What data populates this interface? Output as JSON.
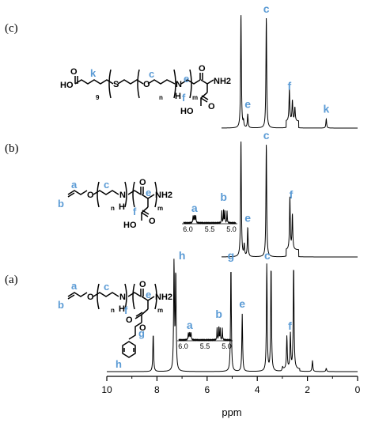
{
  "chart_data": {
    "type": "line",
    "xlabel": "ppm",
    "xlim": [
      10,
      0
    ],
    "x_reversed": true,
    "x_ticks": [
      "10",
      "8",
      "6",
      "4",
      "2",
      "0"
    ],
    "panels": [
      {
        "tag": "(c)",
        "peaks": [
          {
            "ppm": 4.65,
            "height": 1.0
          },
          {
            "ppm": 4.55,
            "height": 0.05
          },
          {
            "ppm": 4.38,
            "height": 0.12
          },
          {
            "ppm": 3.64,
            "height": 0.97
          },
          {
            "ppm": 2.72,
            "height": 0.28
          },
          {
            "ppm": 2.6,
            "height": 0.18
          },
          {
            "ppm": 2.5,
            "height": 0.12
          },
          {
            "ppm": 1.25,
            "height": 0.08
          }
        ],
        "labels": [
          {
            "text": "c",
            "ppm": 3.64,
            "pos": "top"
          },
          {
            "text": "e",
            "ppm": 4.38,
            "pos": "mid"
          },
          {
            "text": "f",
            "ppm": 2.72,
            "pos": "mid"
          },
          {
            "text": "k",
            "ppm": 1.25,
            "pos": "mid"
          }
        ],
        "structure": {
          "labels": [
            "k",
            "c",
            "e",
            "f"
          ],
          "atoms": [
            "O",
            "HO",
            "S",
            "O",
            "N",
            "H",
            "NH2",
            "O",
            "HO",
            "O"
          ],
          "subscripts": [
            "9",
            "n",
            "m"
          ]
        }
      },
      {
        "tag": "(b)",
        "peaks": [
          {
            "ppm": 4.65,
            "height": 1.0
          },
          {
            "ppm": 4.52,
            "height": 0.1
          },
          {
            "ppm": 4.38,
            "height": 0.25
          },
          {
            "ppm": 3.64,
            "height": 0.97
          },
          {
            "ppm": 2.7,
            "height": 0.45
          },
          {
            "ppm": 2.6,
            "height": 0.3
          }
        ],
        "labels": [
          {
            "text": "c",
            "ppm": 3.64,
            "pos": "top"
          },
          {
            "text": "e",
            "ppm": 4.38,
            "pos": "mid"
          },
          {
            "text": "f",
            "ppm": 2.65,
            "pos": "mid"
          }
        ],
        "inset": {
          "x_ticks": [
            "6.0",
            "5.5",
            "5.0"
          ],
          "labels": [
            "a",
            "b"
          ]
        },
        "structure": {
          "labels": [
            "a",
            "b",
            "c",
            "e",
            "f"
          ],
          "atoms": [
            "O",
            "N",
            "H",
            "O",
            "NH2",
            "HO",
            "O"
          ],
          "subscripts": [
            "n",
            "m"
          ]
        }
      },
      {
        "tag": "(a)",
        "peaks": [
          {
            "ppm": 8.15,
            "height": 0.35
          },
          {
            "ppm": 7.32,
            "height": 1.0
          },
          {
            "ppm": 7.25,
            "height": 0.9
          },
          {
            "ppm": 5.05,
            "height": 0.98
          },
          {
            "ppm": 4.6,
            "height": 0.52
          },
          {
            "ppm": 3.62,
            "height": 0.98
          },
          {
            "ppm": 3.45,
            "height": 0.98
          },
          {
            "ppm": 3.0,
            "height": 0.03
          },
          {
            "ppm": 2.82,
            "height": 0.3
          },
          {
            "ppm": 2.68,
            "height": 0.32
          },
          {
            "ppm": 2.55,
            "height": 0.97
          },
          {
            "ppm": 1.8,
            "height": 0.1
          },
          {
            "ppm": 1.25,
            "height": 0.03
          }
        ],
        "labels": [
          {
            "text": "h",
            "ppm": 7.0,
            "pos": "top"
          },
          {
            "text": "g",
            "ppm": 5.05,
            "pos": "top"
          },
          {
            "text": "e",
            "ppm": 4.6,
            "pos": "mid"
          },
          {
            "text": "c",
            "ppm": 3.6,
            "pos": "top"
          },
          {
            "text": "f",
            "ppm": 2.7,
            "pos": "mid"
          }
        ],
        "inset": {
          "x_ticks": [
            "6.0",
            "5.5",
            "5.0"
          ],
          "labels": [
            "a",
            "b"
          ]
        },
        "structure": {
          "labels": [
            "a",
            "b",
            "c",
            "e",
            "f",
            "g",
            "h"
          ],
          "atoms": [
            "O",
            "N",
            "H",
            "O",
            "NH2",
            "O",
            "O"
          ],
          "subscripts": [
            "n",
            "m"
          ]
        }
      }
    ]
  }
}
